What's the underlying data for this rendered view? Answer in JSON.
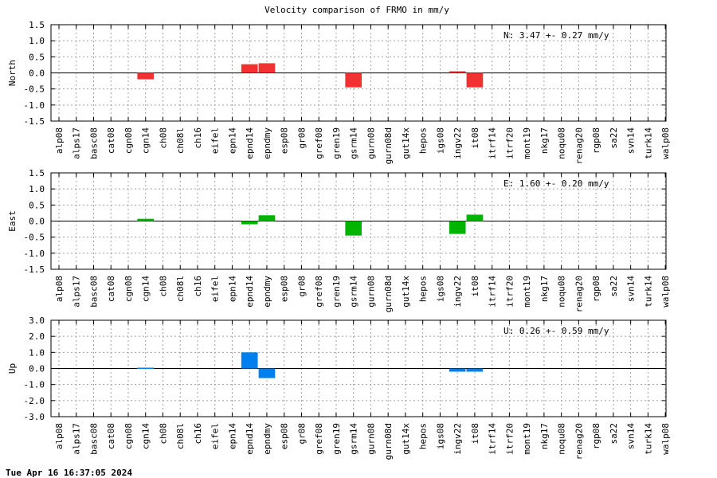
{
  "page": {
    "title": "Velocity comparison of FRMO in mm/y",
    "timestamp": "Tue Apr 16 16:37:05 2024"
  },
  "chart_data": [
    {
      "type": "bar",
      "ylabel": "North",
      "annotation": "N:   3.47 +-  0.27 mm/y",
      "ylim": [
        -1.5,
        1.5
      ],
      "yticks": [
        "1.5",
        "1.0",
        "0.5",
        "0.0",
        "-0.5",
        "-1.0",
        "-1.5"
      ],
      "grid": true,
      "color": "#f03232",
      "categories": [
        "alp08",
        "alps17",
        "basc08",
        "cat08",
        "cgn08",
        "cgn14",
        "ch08",
        "ch08l",
        "ch16",
        "eifel",
        "epn14",
        "epnd14",
        "epndmy",
        "esp08",
        "gr08",
        "gref08",
        "gren19",
        "gsrm14",
        "gurn08",
        "gurn08d",
        "gut14x",
        "hepos",
        "igs08",
        "ingv22",
        "it08",
        "itrf14",
        "itrf20",
        "mont19",
        "nkg17",
        "noqu08",
        "renag20",
        "rgp08",
        "sa22",
        "svn14",
        "turk14",
        "walp08"
      ],
      "values": [
        0,
        0,
        0,
        0,
        0,
        -0.2,
        0,
        0,
        0,
        0,
        0,
        0.27,
        0.3,
        0,
        0,
        0,
        0,
        -0.45,
        0,
        0,
        0,
        0,
        0,
        0.05,
        -0.45,
        0,
        0,
        0,
        0,
        0,
        0,
        0,
        0,
        0,
        0,
        0
      ]
    },
    {
      "type": "bar",
      "ylabel": "East",
      "annotation": "E:   1.60 +-  0.20 mm/y",
      "ylim": [
        -1.5,
        1.5
      ],
      "yticks": [
        "1.5",
        "1.0",
        "0.5",
        "0.0",
        "-0.5",
        "-1.0",
        "-1.5"
      ],
      "grid": true,
      "color": "#00b400",
      "categories": [
        "alp08",
        "alps17",
        "basc08",
        "cat08",
        "cgn08",
        "cgn14",
        "ch08",
        "ch08l",
        "ch16",
        "eifel",
        "epn14",
        "epnd14",
        "epndmy",
        "esp08",
        "gr08",
        "gref08",
        "gren19",
        "gsrm14",
        "gurn08",
        "gurn08d",
        "gut14x",
        "hepos",
        "igs08",
        "ingv22",
        "it08",
        "itrf14",
        "itrf20",
        "mont19",
        "nkg17",
        "noqu08",
        "renag20",
        "rgp08",
        "sa22",
        "svn14",
        "turk14",
        "walp08"
      ],
      "values": [
        0,
        0,
        0,
        0,
        0,
        0.07,
        0,
        0,
        0,
        0,
        0,
        -0.1,
        0.18,
        0,
        0,
        0,
        0,
        -0.45,
        0,
        0,
        0,
        0,
        0,
        -0.4,
        0.2,
        0,
        0,
        0,
        0,
        0,
        0,
        0,
        0,
        0,
        0,
        0
      ]
    },
    {
      "type": "bar",
      "ylabel": "Up",
      "annotation": "U:   0.26 +-  0.59 mm/y",
      "ylim": [
        -3.0,
        3.0
      ],
      "yticks": [
        "3.0",
        "2.0",
        "1.0",
        "0.0",
        "-1.0",
        "-2.0",
        "-3.0"
      ],
      "grid": true,
      "color": "#0080f0",
      "categories": [
        "alp08",
        "alps17",
        "basc08",
        "cat08",
        "cgn08",
        "cgn14",
        "ch08",
        "ch08l",
        "ch16",
        "eifel",
        "epn14",
        "epnd14",
        "epndmy",
        "esp08",
        "gr08",
        "gref08",
        "gren19",
        "gsrm14",
        "gurn08",
        "gurn08d",
        "gut14x",
        "hepos",
        "igs08",
        "ingv22",
        "it08",
        "itrf14",
        "itrf20",
        "mont19",
        "nkg17",
        "noqu08",
        "renag20",
        "rgp08",
        "sa22",
        "svn14",
        "turk14",
        "walp08"
      ],
      "values": [
        0,
        0,
        0,
        0,
        0,
        0.05,
        0,
        0,
        0,
        0,
        0,
        1.0,
        -0.6,
        0,
        0,
        0,
        0,
        0,
        0,
        0,
        0,
        0,
        0,
        -0.2,
        -0.2,
        0,
        0,
        0,
        0,
        0,
        0,
        0,
        0,
        0,
        0,
        0
      ]
    }
  ]
}
